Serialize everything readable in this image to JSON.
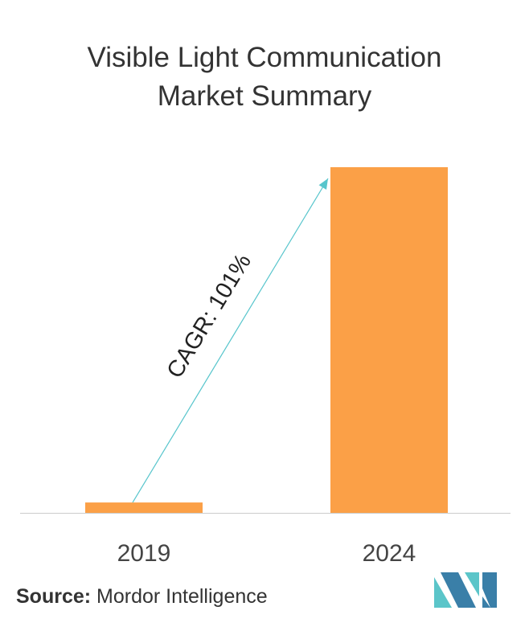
{
  "title_line1": "Visible Light Communication",
  "title_line2": "Market Summary",
  "chart_data": {
    "type": "bar",
    "categories": [
      "2019",
      "2024"
    ],
    "values": [
      3,
      100
    ],
    "ylim": [
      0,
      100
    ],
    "annotation": "CAGR: 101%",
    "grid": false,
    "colors": {
      "bar": "#FBA047",
      "arrow": "#57C5CC",
      "axis": "#cccccc",
      "text": "#333333"
    }
  },
  "source": {
    "label": "Source:",
    "text": "Mordor Intelligence"
  },
  "logo": {
    "colors": [
      "#5BC5C9",
      "#3A7FA8"
    ]
  }
}
